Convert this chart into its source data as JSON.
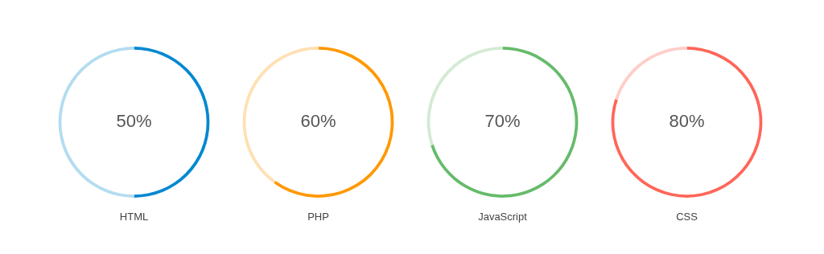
{
  "chart_data": [
    {
      "type": "donut",
      "title": "HTML",
      "categories": [
        null,
        null
      ],
      "values": [
        50,
        50
      ],
      "colors": [
        "#0288d1",
        "#b3dcf0"
      ],
      "annotations": [
        "50%"
      ]
    },
    {
      "type": "donut",
      "title": "PHP",
      "categories": [
        null,
        null
      ],
      "values": [
        60,
        40
      ],
      "colors": [
        "#ff9800",
        "#ffe0b2"
      ],
      "annotations": [
        "60%"
      ]
    },
    {
      "type": "donut",
      "title": "JavaScript",
      "categories": [
        null,
        null
      ],
      "values": [
        70,
        30
      ],
      "colors": [
        "#66bb6a",
        "#d3ead3"
      ],
      "annotations": [
        "70%"
      ]
    },
    {
      "type": "donut",
      "title": "CSS",
      "categories": [
        null,
        null
      ],
      "values": [
        80,
        20
      ],
      "colors": [
        "#ff6659",
        "#ffcdc8"
      ],
      "annotations": [
        "80%"
      ]
    }
  ]
}
